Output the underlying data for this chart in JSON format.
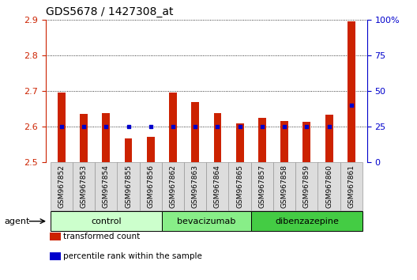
{
  "title": "GDS5678 / 1427308_at",
  "samples": [
    "GSM967852",
    "GSM967853",
    "GSM967854",
    "GSM967855",
    "GSM967856",
    "GSM967862",
    "GSM967863",
    "GSM967864",
    "GSM967865",
    "GSM967857",
    "GSM967858",
    "GSM967859",
    "GSM967860",
    "GSM967861"
  ],
  "transformed_counts": [
    2.695,
    2.635,
    2.638,
    2.568,
    2.572,
    2.695,
    2.668,
    2.638,
    2.61,
    2.625,
    2.615,
    2.613,
    2.633,
    2.895
  ],
  "percentile_ranks": [
    25,
    25,
    25,
    25,
    25,
    25,
    25,
    25,
    25,
    25,
    25,
    25,
    25,
    40
  ],
  "ylim_left": [
    2.5,
    2.9
  ],
  "ylim_right": [
    0,
    100
  ],
  "yticks_left": [
    2.5,
    2.6,
    2.7,
    2.8,
    2.9
  ],
  "yticks_right": [
    0,
    25,
    50,
    75,
    100
  ],
  "ytick_labels_right": [
    "0",
    "25",
    "50",
    "75",
    "100%"
  ],
  "bar_color": "#cc2200",
  "dot_color": "#0000cc",
  "bg_color": "#ffffff",
  "groups": [
    {
      "label": "control",
      "start": 0,
      "end": 5,
      "color": "#ccffcc"
    },
    {
      "label": "bevacizumab",
      "start": 5,
      "end": 9,
      "color": "#88ee88"
    },
    {
      "label": "dibenzazepine",
      "start": 9,
      "end": 14,
      "color": "#44cc44"
    }
  ],
  "group_label": "agent",
  "legend_items": [
    {
      "color": "#cc2200",
      "label": "transformed count"
    },
    {
      "color": "#0000cc",
      "label": "percentile rank within the sample"
    }
  ],
  "bar_width": 0.35,
  "tick_label_fontsize": 6.5,
  "title_fontsize": 10,
  "label_box_color": "#dddddd",
  "label_box_edge": "#999999"
}
